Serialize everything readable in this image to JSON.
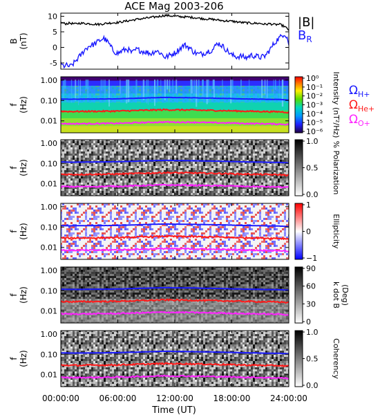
{
  "title": "ACE Mag 2003-206",
  "colors": {
    "b_total": "#000000",
    "b_r": "#1a1aff",
    "h_plus": "#1a1aff",
    "he_plus": "#ff1a1a",
    "o_plus": "#ff22ff",
    "frame": "#000000"
  },
  "chart_data": {
    "type": "line",
    "title": "ACE Mag 2003-206",
    "xlabel": "Time (UT)",
    "x_ticks": [
      "00:00:00",
      "06:00:00",
      "12:00:00",
      "18:00:00",
      "24:00:00"
    ],
    "xlim_hours": [
      0,
      24
    ],
    "panels": [
      {
        "id": "mag",
        "ylabel": [
          "B",
          "(nT)"
        ],
        "ylim": [
          -7,
          11
        ],
        "y_ticks": [
          "10",
          "5",
          "0",
          "-5"
        ],
        "y_tick_values": [
          10,
          5,
          0,
          -5
        ],
        "legend": [
          "|B|",
          "B"
        ],
        "legend_subscript": [
          "",
          "R"
        ],
        "series": [
          {
            "name": "|B|",
            "hours": [
              0,
              0.5,
              1,
              1.5,
              2,
              3,
              4,
              5,
              6,
              7,
              8,
              9,
              10,
              11,
              12,
              13,
              14,
              15,
              16,
              17,
              18,
              19,
              20,
              21,
              21.5,
              22,
              22.5,
              23,
              23.5,
              24
            ],
            "values": [
              8.0,
              7.6,
              7.8,
              7.5,
              7.8,
              7.6,
              7.4,
              7.8,
              8.0,
              8.5,
              9.0,
              9.4,
              9.8,
              10.3,
              10.0,
              9.8,
              9.6,
              9.2,
              9.0,
              8.6,
              8.4,
              8.0,
              7.8,
              7.7,
              7.4,
              7.6,
              7.3,
              7.4,
              6.8,
              5.6
            ]
          },
          {
            "name": "B_R",
            "hours": [
              0,
              0.3,
              0.6,
              1,
              1.4,
              1.8,
              2.1,
              2.5,
              3,
              3.5,
              4,
              4.5,
              5,
              5.5,
              6,
              6.5,
              7,
              7.5,
              8,
              8.5,
              9,
              9.5,
              10,
              10.5,
              11,
              11.5,
              12,
              12.5,
              13,
              13.5,
              14,
              14.5,
              15,
              15.5,
              16,
              16.5,
              17,
              17.5,
              18,
              18.5,
              19,
              19.5,
              20,
              20.5,
              21,
              21.5,
              22,
              22.4,
              22.8,
              23.2,
              23.5,
              23.8,
              24
            ],
            "values": [
              -5.5,
              -6.0,
              -5.8,
              -6.2,
              -5.0,
              -3.5,
              -2.5,
              -0.8,
              0.5,
              1.0,
              2.0,
              3.0,
              1.5,
              -1.0,
              -2.0,
              -1.0,
              -0.5,
              -1.8,
              -0.6,
              -1.2,
              -1.5,
              -2.0,
              -1.0,
              -1.8,
              -3.2,
              -2.5,
              -1.8,
              -0.5,
              0.8,
              0.0,
              -1.5,
              -2.2,
              -2.0,
              -1.2,
              -0.8,
              1.5,
              0.5,
              -1.0,
              -2.5,
              -3.0,
              -2.8,
              -3.4,
              -2.5,
              -2.8,
              -3.2,
              -2.8,
              -0.8,
              1.0,
              2.5,
              3.5,
              4.5,
              3.5,
              1.0
            ]
          }
        ]
      },
      {
        "id": "intensity",
        "ylabel": [
          "f",
          "(Hz)"
        ],
        "y_ticks": [
          "1.00",
          "0.10",
          "0.01"
        ],
        "colorbar_label": "Intensity (nT²/Hz)",
        "colorbar_ticks": [
          "10⁰",
          "10⁻¹",
          "10⁻²",
          "10⁻³",
          "10⁻⁴",
          "10⁻⁵",
          "10⁻⁶"
        ],
        "colormap": "rainbow",
        "legend": [
          "ΩH+",
          "ΩHe+",
          "ΩO+"
        ]
      },
      {
        "id": "polarization",
        "ylabel": [
          "f",
          "(Hz)"
        ],
        "y_ticks": [
          "1.00",
          "0.10",
          "0.01"
        ],
        "colorbar_label": "% Polarization",
        "colorbar_ticks": [
          "1.0",
          "0.5",
          "0.0"
        ],
        "colormap": "gray"
      },
      {
        "id": "ellipticity",
        "ylabel": [
          "f",
          "(Hz)"
        ],
        "y_ticks": [
          "1.00",
          "0.10",
          "0.01"
        ],
        "colorbar_label": "Ellipticity",
        "colorbar_ticks": [
          "1",
          "0",
          "−1"
        ],
        "colormap": "bluewhitered"
      },
      {
        "id": "kdotb",
        "ylabel": [
          "f",
          "(Hz)"
        ],
        "y_ticks": [
          "1.00",
          "0.10",
          "0.01"
        ],
        "colorbar_label": [
          "k dot B",
          "(Deg)"
        ],
        "colorbar_ticks": [
          "90",
          "60",
          "30",
          "0"
        ],
        "colormap": "gray"
      },
      {
        "id": "coherency",
        "ylabel": [
          "f",
          "(Hz)"
        ],
        "y_ticks": [
          "1.00",
          "0.10",
          "0.01"
        ],
        "colorbar_label": "Coherency",
        "colorbar_ticks": [
          "1.0",
          "0.5",
          "0.0"
        ],
        "colormap": "gray"
      }
    ],
    "gyrofrequencies": {
      "hours": [
        0,
        1,
        2,
        3,
        4,
        5,
        6,
        7,
        8,
        9,
        10,
        11,
        12,
        13,
        14,
        15,
        16,
        17,
        18,
        19,
        20,
        21,
        22,
        23,
        24
      ],
      "H+": [
        0.118,
        0.115,
        0.116,
        0.117,
        0.118,
        0.119,
        0.121,
        0.125,
        0.129,
        0.133,
        0.137,
        0.141,
        0.138,
        0.137,
        0.135,
        0.132,
        0.13,
        0.127,
        0.124,
        0.12,
        0.118,
        0.116,
        0.113,
        0.112,
        0.105
      ],
      "He+": [
        0.0295,
        0.0288,
        0.029,
        0.0293,
        0.0295,
        0.0298,
        0.0302,
        0.0312,
        0.0322,
        0.0332,
        0.0342,
        0.0352,
        0.0345,
        0.0343,
        0.0338,
        0.033,
        0.0325,
        0.0318,
        0.031,
        0.03,
        0.0295,
        0.029,
        0.0283,
        0.028,
        0.0262
      ],
      "O+": [
        0.0074,
        0.0072,
        0.0073,
        0.0073,
        0.0074,
        0.0075,
        0.0076,
        0.0078,
        0.0081,
        0.0083,
        0.0086,
        0.0088,
        0.0086,
        0.0086,
        0.0085,
        0.0083,
        0.0081,
        0.008,
        0.0078,
        0.0075,
        0.0074,
        0.0073,
        0.0071,
        0.007,
        0.0066
      ]
    }
  }
}
